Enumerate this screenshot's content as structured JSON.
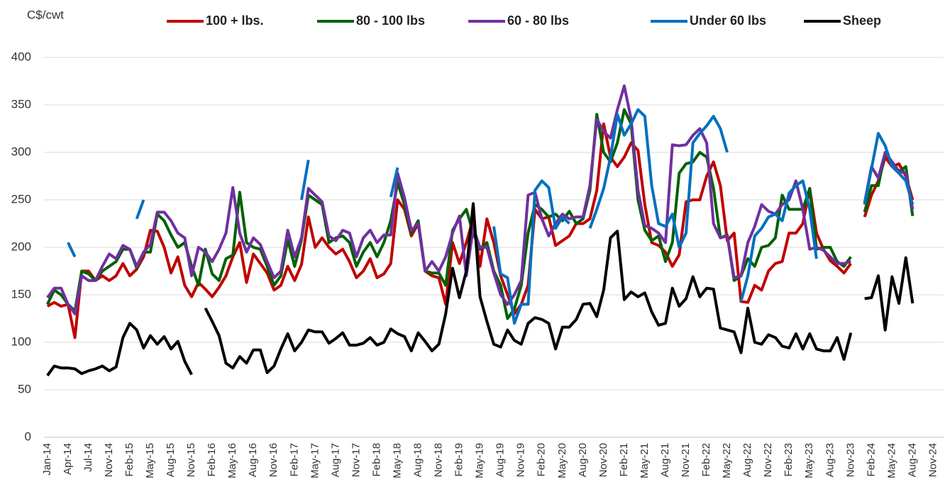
{
  "chart_data": {
    "type": "line",
    "y_label": "C$/cwt",
    "categories": [
      "Jan-14",
      null,
      null,
      "Apr-14",
      null,
      null,
      "Jul-14",
      null,
      null,
      "Nov-14",
      null,
      null,
      "Feb-15",
      null,
      null,
      "May-15",
      null,
      null,
      "Aug-15",
      null,
      null,
      "Nov-15",
      null,
      null,
      "Feb-16",
      null,
      null,
      "May-16",
      null,
      null,
      "Aug-16",
      null,
      null,
      "Nov-16",
      null,
      null,
      "Feb-17",
      null,
      null,
      "May-17",
      null,
      null,
      "Aug-17",
      null,
      null,
      "Nov-17",
      null,
      null,
      "Feb-18",
      null,
      null,
      "May-18",
      null,
      null,
      "Aug-18",
      null,
      null,
      "Nov-18",
      null,
      null,
      "Feb-19",
      null,
      null,
      "May-19",
      null,
      null,
      "Aug-19",
      null,
      null,
      "Nov-19",
      null,
      null,
      "Feb-20",
      null,
      null,
      "May-20",
      null,
      null,
      "Aug-20",
      null,
      null,
      "Nov-20",
      null,
      null,
      "Feb-21",
      null,
      null,
      "May-21",
      null,
      null,
      "Aug-21",
      null,
      null,
      "Nov-21",
      null,
      null,
      "Feb-22",
      null,
      null,
      "May-22",
      null,
      null,
      "Aug-22",
      null,
      null,
      "Nov-22",
      null,
      null,
      "Feb-23",
      null,
      null,
      "May-23",
      null,
      null,
      "Aug-23",
      null,
      null,
      "Nov-23",
      null,
      null,
      "Feb-24",
      null,
      null,
      "May-24",
      null,
      null,
      "Aug-24",
      null,
      null,
      "Nov-24",
      null
    ],
    "series": [
      {
        "name": "100 + lbs.",
        "color": "#c00000",
        "values": [
          138,
          142,
          138,
          140,
          105,
          175,
          175,
          165,
          170,
          165,
          170,
          183,
          170,
          177,
          190,
          218,
          217,
          200,
          173,
          190,
          160,
          148,
          163,
          156,
          148,
          158,
          170,
          190,
          205,
          163,
          193,
          183,
          173,
          155,
          160,
          180,
          165,
          182,
          232,
          200,
          210,
          200,
          193,
          198,
          185,
          168,
          175,
          188,
          168,
          172,
          183,
          250,
          240,
          212,
          225,
          175,
          170,
          168,
          140,
          205,
          183,
          205,
          230,
          180,
          230,
          205,
          170,
          150,
          130,
          140,
          160,
          240,
          230,
          232,
          202,
          207,
          212,
          225,
          225,
          230,
          260,
          330,
          295,
          285,
          295,
          310,
          302,
          245,
          205,
          202,
          195,
          180,
          192,
          248,
          250,
          250,
          275,
          290,
          265,
          207,
          215,
          143,
          142,
          160,
          155,
          175,
          183,
          185,
          215,
          215,
          225,
          262,
          215,
          198,
          186,
          180,
          173,
          183,
          null,
          232,
          255,
          270,
          295,
          285,
          288,
          275,
          250,
          null,
          null,
          null,
          null
        ]
      },
      {
        "name": "80 - 100 lbs",
        "color": "#006100",
        "values": [
          140,
          155,
          150,
          140,
          133,
          175,
          172,
          165,
          175,
          180,
          185,
          198,
          198,
          178,
          195,
          195,
          235,
          228,
          213,
          200,
          205,
          180,
          160,
          198,
          172,
          165,
          188,
          192,
          258,
          205,
          200,
          198,
          180,
          160,
          170,
          208,
          180,
          208,
          255,
          250,
          245,
          205,
          210,
          212,
          205,
          180,
          195,
          205,
          190,
          205,
          228,
          268,
          245,
          215,
          228,
          175,
          173,
          173,
          160,
          218,
          230,
          240,
          215,
          198,
          205,
          175,
          160,
          125,
          135,
          160,
          215,
          245,
          240,
          232,
          235,
          228,
          238,
          225,
          230,
          260,
          340,
          300,
          290,
          310,
          345,
          330,
          250,
          218,
          207,
          212,
          185,
          205,
          278,
          288,
          290,
          300,
          295,
          262,
          210,
          213,
          165,
          170,
          188,
          180,
          200,
          202,
          210,
          255,
          240,
          240,
          240,
          262,
          198,
          200,
          200,
          185,
          180,
          190,
          null,
          237,
          265,
          265,
          300,
          290,
          280,
          285,
          233,
          null,
          null,
          null,
          null
        ]
      },
      {
        "name": "60 - 80 lbs",
        "color": "#7030a0",
        "values": [
          147,
          157,
          157,
          140,
          130,
          170,
          165,
          165,
          180,
          193,
          188,
          202,
          198,
          180,
          195,
          203,
          237,
          237,
          228,
          215,
          210,
          170,
          200,
          195,
          185,
          198,
          215,
          263,
          215,
          195,
          210,
          203,
          185,
          168,
          175,
          218,
          190,
          210,
          262,
          255,
          248,
          212,
          207,
          218,
          215,
          190,
          210,
          218,
          205,
          213,
          213,
          278,
          252,
          218,
          225,
          175,
          185,
          175,
          190,
          215,
          233,
          170,
          220,
          200,
          200,
          173,
          150,
          140,
          150,
          165,
          255,
          258,
          230,
          212,
          225,
          235,
          230,
          232,
          232,
          265,
          335,
          322,
          315,
          345,
          370,
          335,
          260,
          223,
          220,
          215,
          205,
          308,
          307,
          308,
          318,
          325,
          310,
          225,
          210,
          212,
          168,
          170,
          205,
          222,
          245,
          238,
          235,
          245,
          250,
          270,
          240,
          198,
          200,
          197,
          190,
          183,
          183,
          185,
          null,
          247,
          285,
          273,
          300,
          290,
          280,
          278,
          240,
          null,
          null,
          null,
          null
        ]
      },
      {
        "name": "Under 60 lbs",
        "color": "#0070c0",
        "values": [
          null,
          null,
          null,
          205,
          190,
          null,
          null,
          null,
          null,
          null,
          null,
          null,
          null,
          230,
          250,
          null,
          null,
          null,
          null,
          null,
          null,
          null,
          null,
          null,
          null,
          null,
          null,
          null,
          null,
          null,
          null,
          null,
          null,
          null,
          null,
          null,
          null,
          250,
          292,
          null,
          null,
          null,
          null,
          null,
          null,
          null,
          null,
          null,
          null,
          null,
          253,
          284,
          null,
          null,
          null,
          null,
          null,
          null,
          null,
          null,
          null,
          null,
          null,
          null,
          null,
          222,
          172,
          168,
          120,
          140,
          140,
          260,
          270,
          263,
          220,
          232,
          225,
          null,
          null,
          220,
          240,
          262,
          295,
          340,
          318,
          330,
          345,
          338,
          265,
          225,
          222,
          235,
          200,
          215,
          310,
          320,
          328,
          338,
          325,
          300,
          null,
          143,
          170,
          212,
          220,
          232,
          235,
          228,
          257,
          265,
          270,
          240,
          188,
          null,
          null,
          null,
          null,
          null,
          null,
          245,
          283,
          320,
          307,
          285,
          278,
          270,
          245,
          null,
          null,
          null,
          null
        ]
      },
      {
        "name": "Sheep",
        "color": "#000000",
        "values": [
          65,
          75,
          73,
          73,
          72,
          67,
          70,
          72,
          75,
          70,
          74,
          105,
          120,
          113,
          94,
          107,
          98,
          106,
          93,
          101,
          80,
          66,
          null,
          136,
          122,
          107,
          78,
          73,
          85,
          78,
          92,
          92,
          68,
          75,
          93,
          109,
          91,
          100,
          113,
          111,
          111,
          99,
          104,
          110,
          97,
          97,
          99,
          105,
          97,
          100,
          114,
          109,
          106,
          91,
          110,
          101,
          91,
          98,
          130,
          178,
          147,
          175,
          246,
          148,
          122,
          98,
          95,
          113,
          102,
          98,
          120,
          126,
          124,
          120,
          93,
          116,
          116,
          124,
          140,
          141,
          127,
          155,
          210,
          217,
          145,
          153,
          148,
          152,
          132,
          118,
          120,
          157,
          138,
          146,
          169,
          148,
          157,
          156,
          115,
          113,
          111,
          89,
          136,
          100,
          98,
          108,
          105,
          96,
          94,
          109,
          93,
          109,
          93,
          91,
          91,
          105,
          82,
          110,
          null,
          146,
          147,
          170,
          113,
          169,
          141,
          189,
          141,
          null,
          null,
          null,
          null
        ]
      }
    ],
    "ylim": [
      0,
      400
    ],
    "yticks": [
      0,
      50,
      100,
      150,
      200,
      250,
      300,
      350,
      400
    ],
    "grid": true
  }
}
